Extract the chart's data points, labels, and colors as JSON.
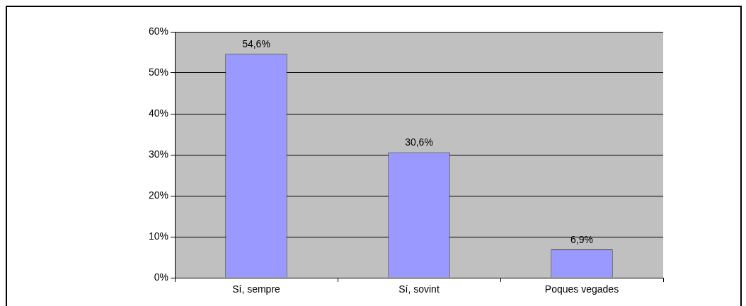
{
  "chart_data": {
    "type": "bar",
    "categories": [
      "Sí, sempre",
      "Sí, sovint",
      "Poques vegades"
    ],
    "values": [
      54.6,
      30.6,
      6.9
    ],
    "color": "#9999ff",
    "value_labels": [
      "54,6%",
      "30,6%",
      "6,9%"
    ],
    "ylim": [
      0,
      60
    ],
    "yticks": [
      {
        "value": 0,
        "label": "0%"
      },
      {
        "value": 10,
        "label": "10%"
      },
      {
        "value": 20,
        "label": "20%"
      },
      {
        "value": 30,
        "label": "30%"
      },
      {
        "value": 40,
        "label": "40%"
      },
      {
        "value": 50,
        "label": "50%"
      },
      {
        "value": 60,
        "label": "60%"
      }
    ],
    "grid": "y",
    "legend": false
  }
}
